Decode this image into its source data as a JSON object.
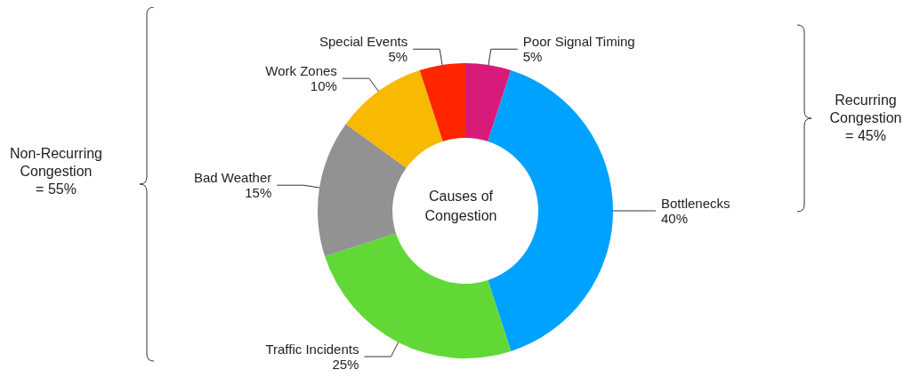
{
  "chart_data": {
    "type": "donut",
    "title": "Causes of Congestion",
    "categories": [
      "Poor Signal Timing",
      "Bottlenecks",
      "Traffic Incidents",
      "Bad Weather",
      "Work Zones",
      "Special Events"
    ],
    "values": [
      5,
      40,
      25,
      15,
      10,
      5
    ],
    "value_labels": [
      "5%",
      "40%",
      "25%",
      "15%",
      "10%",
      "5%"
    ],
    "colors": [
      "#d81b7a",
      "#00a2ff",
      "#61d836",
      "#929292",
      "#f8ba00",
      "#ff2600"
    ],
    "legend": false,
    "annotations": [
      "Non-Recurring\nCongestion\n= 55%",
      "Recurring\nCongestion\n= 45%"
    ]
  }
}
